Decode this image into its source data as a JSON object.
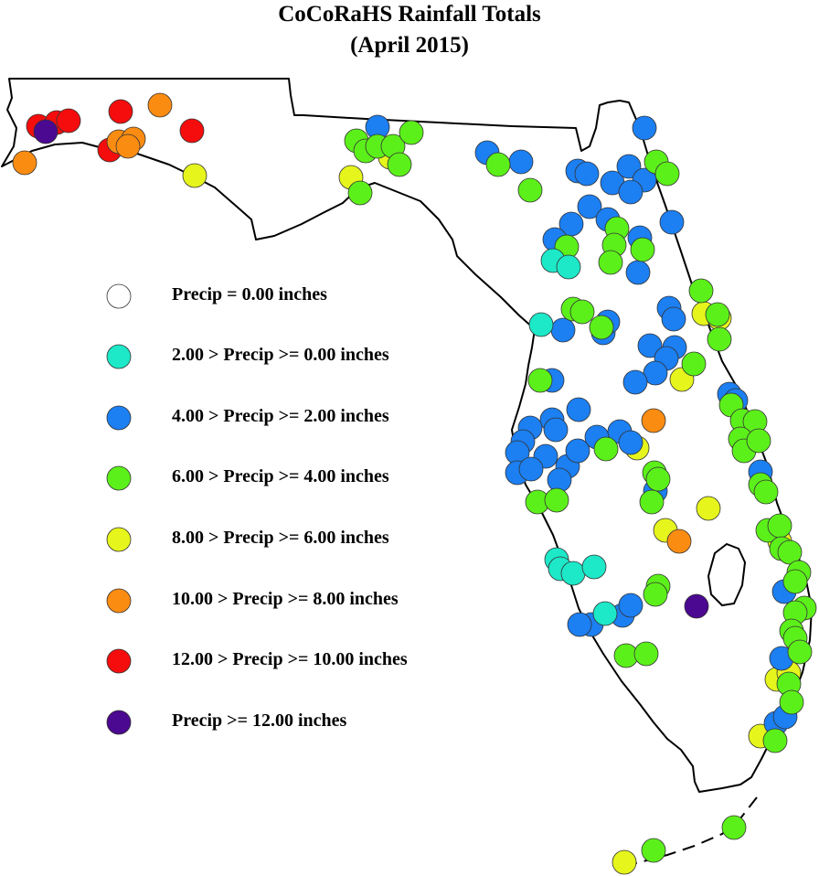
{
  "title": {
    "line1": "CoCoRaHS Rainfall Totals",
    "line2": "(April 2015)"
  },
  "legend": [
    {
      "label": "Precip = 0.00 inches",
      "color": "#ffffff"
    },
    {
      "label": "2.00 > Precip >= 0.00 inches",
      "color": "#1de8c8"
    },
    {
      "label": "4.00 > Precip >= 2.00 inches",
      "color": "#1c7ff2"
    },
    {
      "label": "6.00 > Precip >= 4.00 inches",
      "color": "#5cf01a"
    },
    {
      "label": "8.00 > Precip >= 6.00 inches",
      "color": "#e6f51c"
    },
    {
      "label": "10.00 > Precip >= 8.00 inches",
      "color": "#fb8c12"
    },
    {
      "label": "12.00 > Precip >= 10.00 inches",
      "color": "#f50d0d"
    },
    {
      "label": " Precip >= 12.00 inches",
      "color": "#4b0891"
    }
  ]
}
